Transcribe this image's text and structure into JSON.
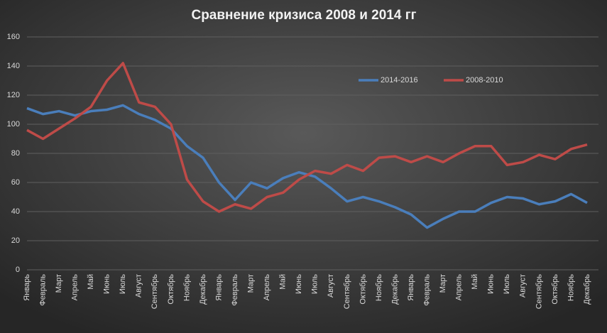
{
  "chart_data": {
    "type": "line",
    "title": "Сравнение кризиса 2008 и 2014 гг",
    "categories": [
      "Январь",
      "Февраль",
      "Март",
      "Апрель",
      "Май",
      "Июнь",
      "Июль",
      "Август",
      "Сентябрь",
      "Октябрь",
      "Ноябрь",
      "Декабрь",
      "Январь",
      "Февраль",
      "Март",
      "Апрель",
      "Май",
      "Июнь",
      "Июль",
      "Август",
      "Сентябрь",
      "Октябрь",
      "Ноябрь",
      "Декабрь",
      "Январь",
      "Февраль",
      "Март",
      "Апрель",
      "Май",
      "Июнь",
      "Июль",
      "Август",
      "Сентябрь",
      "Октябрь",
      "Ноябрь",
      "Декабрь"
    ],
    "series": [
      {
        "name": "2014-2016",
        "color": "#4a7ebb",
        "values": [
          111,
          107,
          109,
          106,
          109,
          110,
          113,
          107,
          103,
          97,
          85,
          77,
          60,
          48,
          60,
          56,
          63,
          67,
          64,
          56,
          47,
          50,
          47,
          43,
          38,
          29,
          35,
          40,
          40,
          46,
          50,
          49,
          45,
          47,
          52,
          46
        ]
      },
      {
        "name": "2008-2010",
        "color": "#be4b48",
        "values": [
          96,
          90,
          97,
          104,
          112,
          130,
          142,
          115,
          112,
          100,
          62,
          47,
          40,
          45,
          42,
          50,
          53,
          62,
          68,
          66,
          72,
          68,
          77,
          78,
          74,
          78,
          74,
          80,
          85,
          85,
          72,
          74,
          79,
          76,
          83,
          86
        ]
      }
    ],
    "ylim": [
      0,
      160
    ],
    "yticks": [
      0,
      20,
      40,
      60,
      80,
      100,
      120,
      140,
      160
    ],
    "grid": true,
    "legend": "top-right"
  }
}
